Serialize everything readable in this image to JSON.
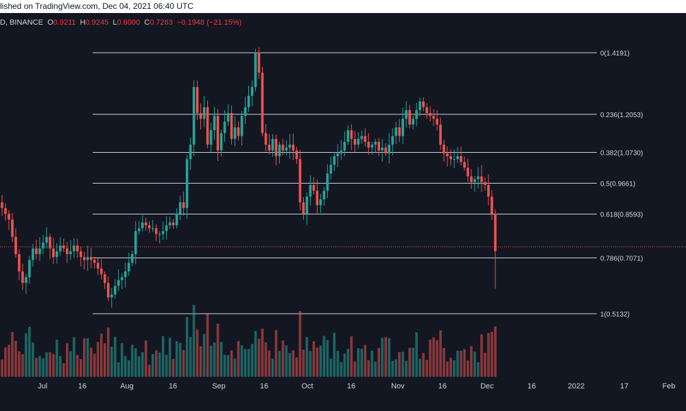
{
  "header": {
    "published_text": "lished on TradingView.com, Dec 04, 2021 06:40 UTC"
  },
  "legend": {
    "symbol_exchange": "D, BINANCE",
    "o_label": "O",
    "o_value": "0.9211",
    "h_label": "H",
    "h_value": "0.9245",
    "l_label": "L",
    "l_value": "0.6000",
    "c_label": "C",
    "c_value": "0.7263",
    "change_value": "−0.1948 (−21.15%)"
  },
  "colors": {
    "background": "#131722",
    "up": "#26a69a",
    "down": "#ef5350",
    "fib_line": "#d1d4dc",
    "text": "#d1d4dc",
    "current_price_line": "#ef5350"
  },
  "chart_data": {
    "type": "candlestick",
    "title": "",
    "ylabel": "",
    "xlabel": "",
    "x_tick_labels": [
      "Jul",
      "16",
      "Aug",
      "16",
      "Sep",
      "16",
      "Oct",
      "16",
      "Nov",
      "16",
      "Dec",
      "16",
      "2022",
      "17",
      "Feb"
    ],
    "fib_levels": [
      {
        "label": "0(1.4191)",
        "value": 1.4191
      },
      {
        "label": "0.236(1.2053)",
        "value": 1.2053
      },
      {
        "label": "0.382(1.0730)",
        "value": 1.073
      },
      {
        "label": "0.5(0.9661)",
        "value": 0.9661
      },
      {
        "label": "0.618(0.8593)",
        "value": 0.8593
      },
      {
        "label": "0.786(0.7071)",
        "value": 0.7071
      },
      {
        "label": "1(0.5132)",
        "value": 0.5132
      }
    ],
    "current_price": 0.7263,
    "ylim": [
      0.5132,
      1.4191
    ],
    "grid": false,
    "candles_close": [
      0.88,
      0.86,
      0.84,
      0.78,
      0.72,
      0.66,
      0.62,
      0.64,
      0.7,
      0.74,
      0.72,
      0.74,
      0.76,
      0.78,
      0.74,
      0.71,
      0.73,
      0.75,
      0.74,
      0.72,
      0.73,
      0.75,
      0.73,
      0.71,
      0.7,
      0.71,
      0.7,
      0.69,
      0.67,
      0.65,
      0.62,
      0.57,
      0.58,
      0.61,
      0.63,
      0.64,
      0.66,
      0.69,
      0.72,
      0.8,
      0.81,
      0.83,
      0.82,
      0.81,
      0.81,
      0.79,
      0.79,
      0.8,
      0.82,
      0.83,
      0.82,
      0.86,
      0.9,
      0.88,
      1.05,
      1.1,
      1.3,
      1.21,
      1.19,
      1.23,
      1.1,
      1.15,
      1.2,
      1.08,
      1.14,
      1.18,
      1.21,
      1.12,
      1.16,
      1.13,
      1.2,
      1.23,
      1.27,
      1.3,
      1.42,
      1.35,
      1.14,
      1.1,
      1.08,
      1.12,
      1.06,
      1.1,
      1.08,
      1.09,
      1.1,
      1.08,
      1.05,
      0.9,
      0.86,
      0.92,
      0.96,
      0.94,
      0.89,
      0.91,
      0.94,
      1.0,
      1.03,
      1.06,
      1.07,
      1.08,
      1.11,
      1.15,
      1.12,
      1.1,
      1.12,
      1.13,
      1.11,
      1.09,
      1.1,
      1.11,
      1.08,
      1.09,
      1.07,
      1.1,
      1.13,
      1.16,
      1.13,
      1.19,
      1.22,
      1.17,
      1.19,
      1.22,
      1.25,
      1.23,
      1.21,
      1.2,
      1.19,
      1.17,
      1.1,
      1.07,
      1.06,
      1.05,
      1.05,
      1.06,
      1.04,
      1.02,
      0.99,
      0.97,
      0.98,
      0.99,
      0.97,
      0.96,
      0.92,
      0.86,
      0.73
    ],
    "volume_up_down_pattern": "green=up, red=down"
  }
}
